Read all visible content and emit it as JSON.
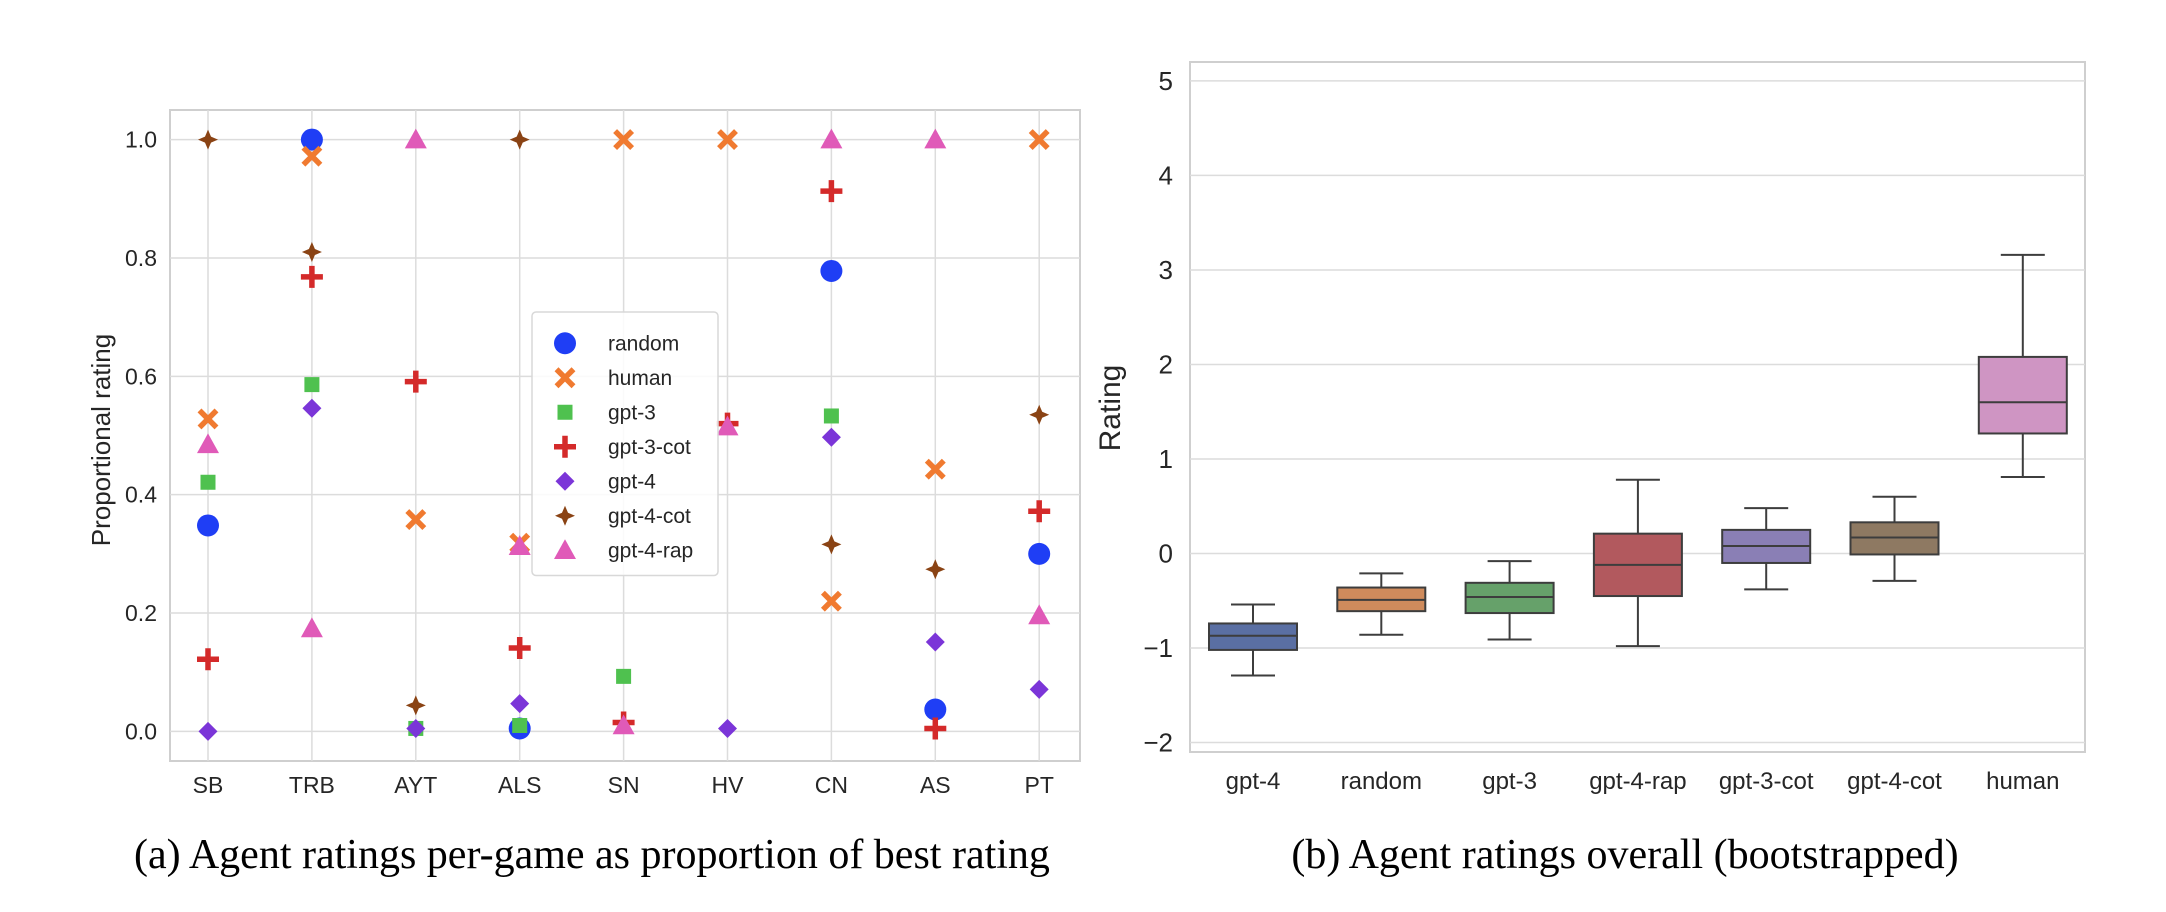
{
  "chart_data": [
    {
      "type": "scatter",
      "caption": "(a) Agent ratings per-game as proportion of best rating",
      "ylabel": "Proportional rating",
      "xlabel": "",
      "categories": [
        "SB",
        "TRB",
        "AYT",
        "ALS",
        "SN",
        "HV",
        "CN",
        "AS",
        "PT"
      ],
      "yticks": [
        "0.0",
        "0.2",
        "0.4",
        "0.6",
        "0.8",
        "1.0"
      ],
      "ylim": [
        -0.05,
        1.05
      ],
      "grid": true,
      "legend_position": "center",
      "series": [
        {
          "name": "random",
          "marker": "circle",
          "color": "#1f3ef5",
          "values": [
            0.348,
            1.0,
            null,
            0.005,
            null,
            null,
            0.778,
            0.037,
            0.3
          ]
        },
        {
          "name": "human",
          "marker": "x",
          "color": "#f07a30",
          "values": [
            0.528,
            0.972,
            0.358,
            0.318,
            1.0,
            1.0,
            0.22,
            0.443,
            1.0
          ]
        },
        {
          "name": "gpt-3",
          "marker": "square",
          "color": "#4fc14f",
          "values": [
            0.421,
            0.586,
            0.005,
            0.01,
            0.093,
            null,
            0.533,
            null,
            null
          ]
        },
        {
          "name": "gpt-3-cot",
          "marker": "plus",
          "color": "#d42a2a",
          "values": [
            0.122,
            0.768,
            0.591,
            0.141,
            0.015,
            0.52,
            0.913,
            0.005,
            0.372
          ]
        },
        {
          "name": "gpt-4",
          "marker": "diamond",
          "color": "#7b35d8",
          "values": [
            0.0,
            0.546,
            0.005,
            0.047,
            null,
            0.005,
            0.497,
            0.151,
            0.071
          ]
        },
        {
          "name": "gpt-4-cot",
          "marker": "star4",
          "color": "#8a4314",
          "values": [
            1.0,
            0.81,
            0.044,
            1.0,
            null,
            null,
            0.316,
            0.274,
            0.535
          ]
        },
        {
          "name": "gpt-4-rap",
          "marker": "triangle",
          "color": "#e05ab8",
          "values": [
            0.485,
            0.174,
            1.0,
            0.313,
            0.01,
            0.515,
            1.0,
            1.0,
            0.196
          ]
        }
      ]
    },
    {
      "type": "box",
      "caption": "(b) Agent ratings overall (bootstrapped)",
      "ylabel": "Rating",
      "xlabel": "",
      "categories": [
        "gpt-4",
        "random",
        "gpt-3",
        "gpt-4-rap",
        "gpt-3-cot",
        "gpt-4-cot",
        "human"
      ],
      "yticks": [
        "−2",
        "−1",
        "0",
        "1",
        "2",
        "3",
        "4",
        "5"
      ],
      "ylim": [
        -2.1,
        5.2
      ],
      "grid": true,
      "boxes": [
        {
          "name": "gpt-4",
          "color": "#5a6fa3",
          "whisker_low": -1.29,
          "q1": -1.02,
          "median": -0.87,
          "q3": -0.74,
          "whisker_high": -0.54
        },
        {
          "name": "random",
          "color": "#cf8b5c",
          "whisker_low": -0.86,
          "q1": -0.61,
          "median": -0.49,
          "q3": -0.36,
          "whisker_high": -0.21
        },
        {
          "name": "gpt-3",
          "color": "#66a16a",
          "whisker_low": -0.91,
          "q1": -0.63,
          "median": -0.46,
          "q3": -0.31,
          "whisker_high": -0.08
        },
        {
          "name": "gpt-4-rap",
          "color": "#b2595e",
          "whisker_low": -0.98,
          "q1": -0.45,
          "median": -0.12,
          "q3": 0.21,
          "whisker_high": 0.78
        },
        {
          "name": "gpt-3-cot",
          "color": "#8a7fb5",
          "whisker_low": -0.38,
          "q1": -0.1,
          "median": 0.08,
          "q3": 0.25,
          "whisker_high": 0.48
        },
        {
          "name": "gpt-4-cot",
          "color": "#8e7962",
          "whisker_low": -0.29,
          "q1": -0.01,
          "median": 0.17,
          "q3": 0.33,
          "whisker_high": 0.6
        },
        {
          "name": "human",
          "color": "#cf95c3",
          "whisker_low": 0.81,
          "q1": 1.27,
          "median": 1.6,
          "q3": 2.08,
          "whisker_high": 3.16
        }
      ]
    }
  ]
}
